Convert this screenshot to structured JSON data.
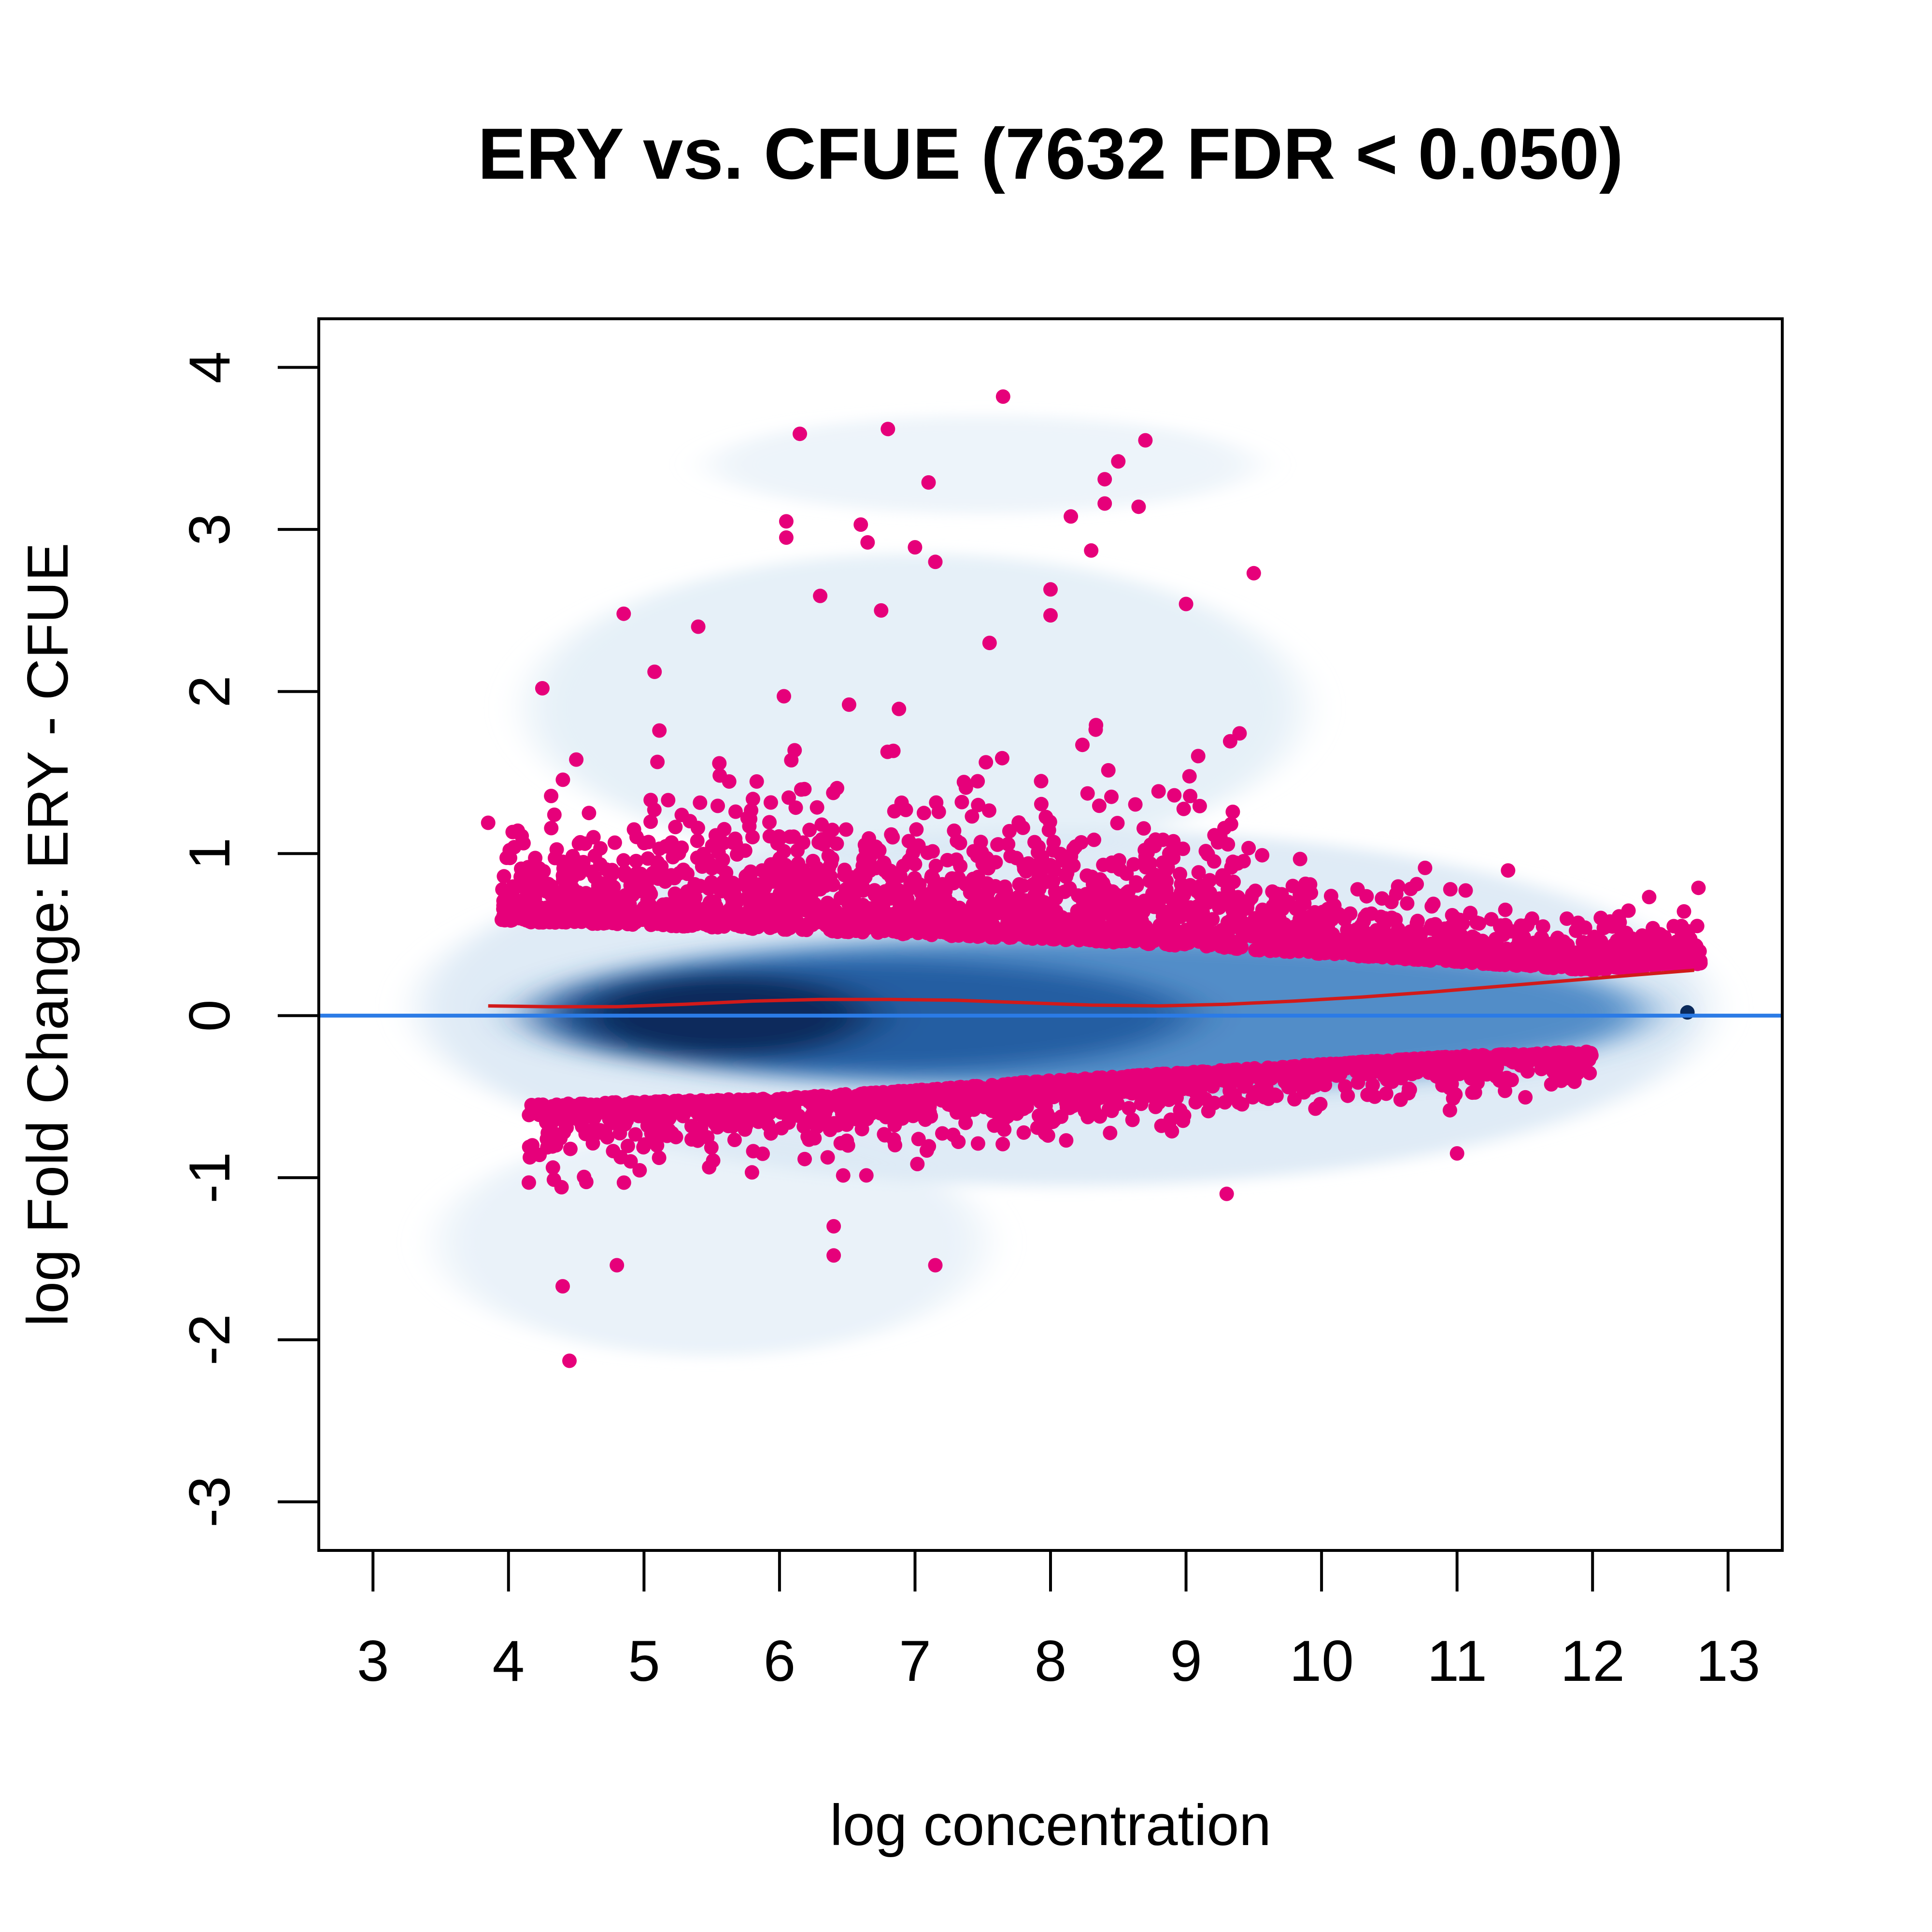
{
  "chart_data": {
    "type": "scatter",
    "title": "ERY vs. CFUE (7632 FDR < 0.050)",
    "xlabel": "log concentration",
    "ylabel": "log Fold Change: ERY - CFUE",
    "xlim": [
      2.6,
      13.4
    ],
    "ylim": [
      -3.3,
      4.3
    ],
    "x_ticks": [
      3,
      4,
      5,
      6,
      7,
      8,
      9,
      10,
      11,
      12,
      13
    ],
    "y_ticks": [
      -3,
      -2,
      -1,
      0,
      1,
      2,
      3,
      4
    ],
    "x_tick_labels": [
      "3",
      "4",
      "5",
      "6",
      "7",
      "8",
      "9",
      "10",
      "11",
      "12",
      "13"
    ],
    "y_tick_labels": [
      "-3",
      "-2",
      "-1",
      "0",
      "1",
      "2",
      "3",
      "4"
    ],
    "grid": false,
    "legend": false,
    "colors": {
      "significant": "#E6007A",
      "reference_line": "#2B7BE6",
      "loess_curve": "#D11A1A",
      "density_dark": "#0A2A5C",
      "density_mid": "#3A7CC0",
      "density_light": "#DCE9F5",
      "axis": "#000000"
    },
    "reference_line_y": 0,
    "density_background": {
      "description_points": [
        [
          5.2,
          0.0
        ],
        [
          6.0,
          0.0
        ],
        [
          7.0,
          0.0
        ],
        [
          8.0,
          0.0
        ],
        [
          9.0,
          0.0
        ],
        [
          10.0,
          0.0
        ],
        [
          11.0,
          0.05
        ],
        [
          12.0,
          0.1
        ]
      ]
    },
    "loess_curve": {
      "x": [
        3.85,
        4.3,
        4.8,
        5.3,
        5.8,
        6.3,
        6.8,
        7.3,
        7.8,
        8.3,
        8.8,
        9.3,
        9.8,
        10.3,
        10.8,
        11.3,
        11.8,
        12.3,
        12.75
      ],
      "y": [
        0.06,
        0.055,
        0.055,
        0.07,
        0.09,
        0.1,
        0.1,
        0.095,
        0.08,
        0.065,
        0.06,
        0.07,
        0.09,
        0.115,
        0.145,
        0.18,
        0.215,
        0.25,
        0.28
      ]
    },
    "notable_points": {
      "x": [
        7.65,
        6.8,
        6.15,
        8.7,
        8.5,
        7.1,
        8.4,
        8.4,
        8.65,
        6.05,
        6.05,
        6.6,
        8.15,
        6.65,
        7.0,
        8.3,
        9.5,
        7.15,
        8.0,
        6.3,
        9.0,
        4.85,
        8.0,
        5.4,
        6.75,
        4.25,
        7.55,
        4.0,
        3.85,
        4.5,
        4.4,
        4.45,
        4.8,
        4.15,
        6.4,
        6.4,
        7.15,
        9.3,
        11.0,
        12.65,
        12.75
      ],
      "y": [
        3.82,
        3.62,
        3.59,
        3.55,
        3.42,
        3.29,
        3.31,
        3.16,
        3.14,
        3.05,
        2.95,
        3.03,
        3.08,
        2.92,
        2.89,
        2.87,
        2.73,
        2.8,
        2.63,
        2.59,
        2.54,
        2.48,
        2.47,
        2.4,
        2.5,
        2.02,
        2.3,
        0.6,
        1.19,
        1.58,
        -1.67,
        -2.13,
        -1.54,
        -1.03,
        -1.3,
        -1.48,
        -1.54,
        -1.1,
        -0.85,
        0.45,
        0.34
      ],
      "significant": [
        true,
        true,
        true,
        true,
        true,
        true,
        true,
        true,
        true,
        true,
        true,
        true,
        true,
        true,
        true,
        true,
        true,
        true,
        true,
        true,
        true,
        true,
        true,
        true,
        true,
        true,
        true,
        true,
        true,
        true,
        true,
        true,
        true,
        true,
        true,
        true,
        true,
        true,
        true,
        true,
        true
      ]
    },
    "cloud_description": {
      "upper_band_edge": {
        "x": [
          4.0,
          5.0,
          6.0,
          7.0,
          8.0,
          9.0,
          10.0,
          11.0,
          12.0,
          12.8
        ],
        "y": [
          0.58,
          0.56,
          0.53,
          0.5,
          0.47,
          0.43,
          0.38,
          0.33,
          0.28,
          0.32
        ]
      },
      "lower_band_edge": {
        "x": [
          4.2,
          5.0,
          6.0,
          7.0,
          8.0,
          9.0,
          10.0,
          11.0,
          12.0
        ],
        "y": [
          -0.55,
          -0.53,
          -0.51,
          -0.46,
          -0.4,
          -0.35,
          -0.3,
          -0.25,
          -0.22
        ]
      }
    },
    "non_significant_extra": {
      "x": [
        12.7
      ],
      "y": [
        0.02
      ]
    }
  }
}
